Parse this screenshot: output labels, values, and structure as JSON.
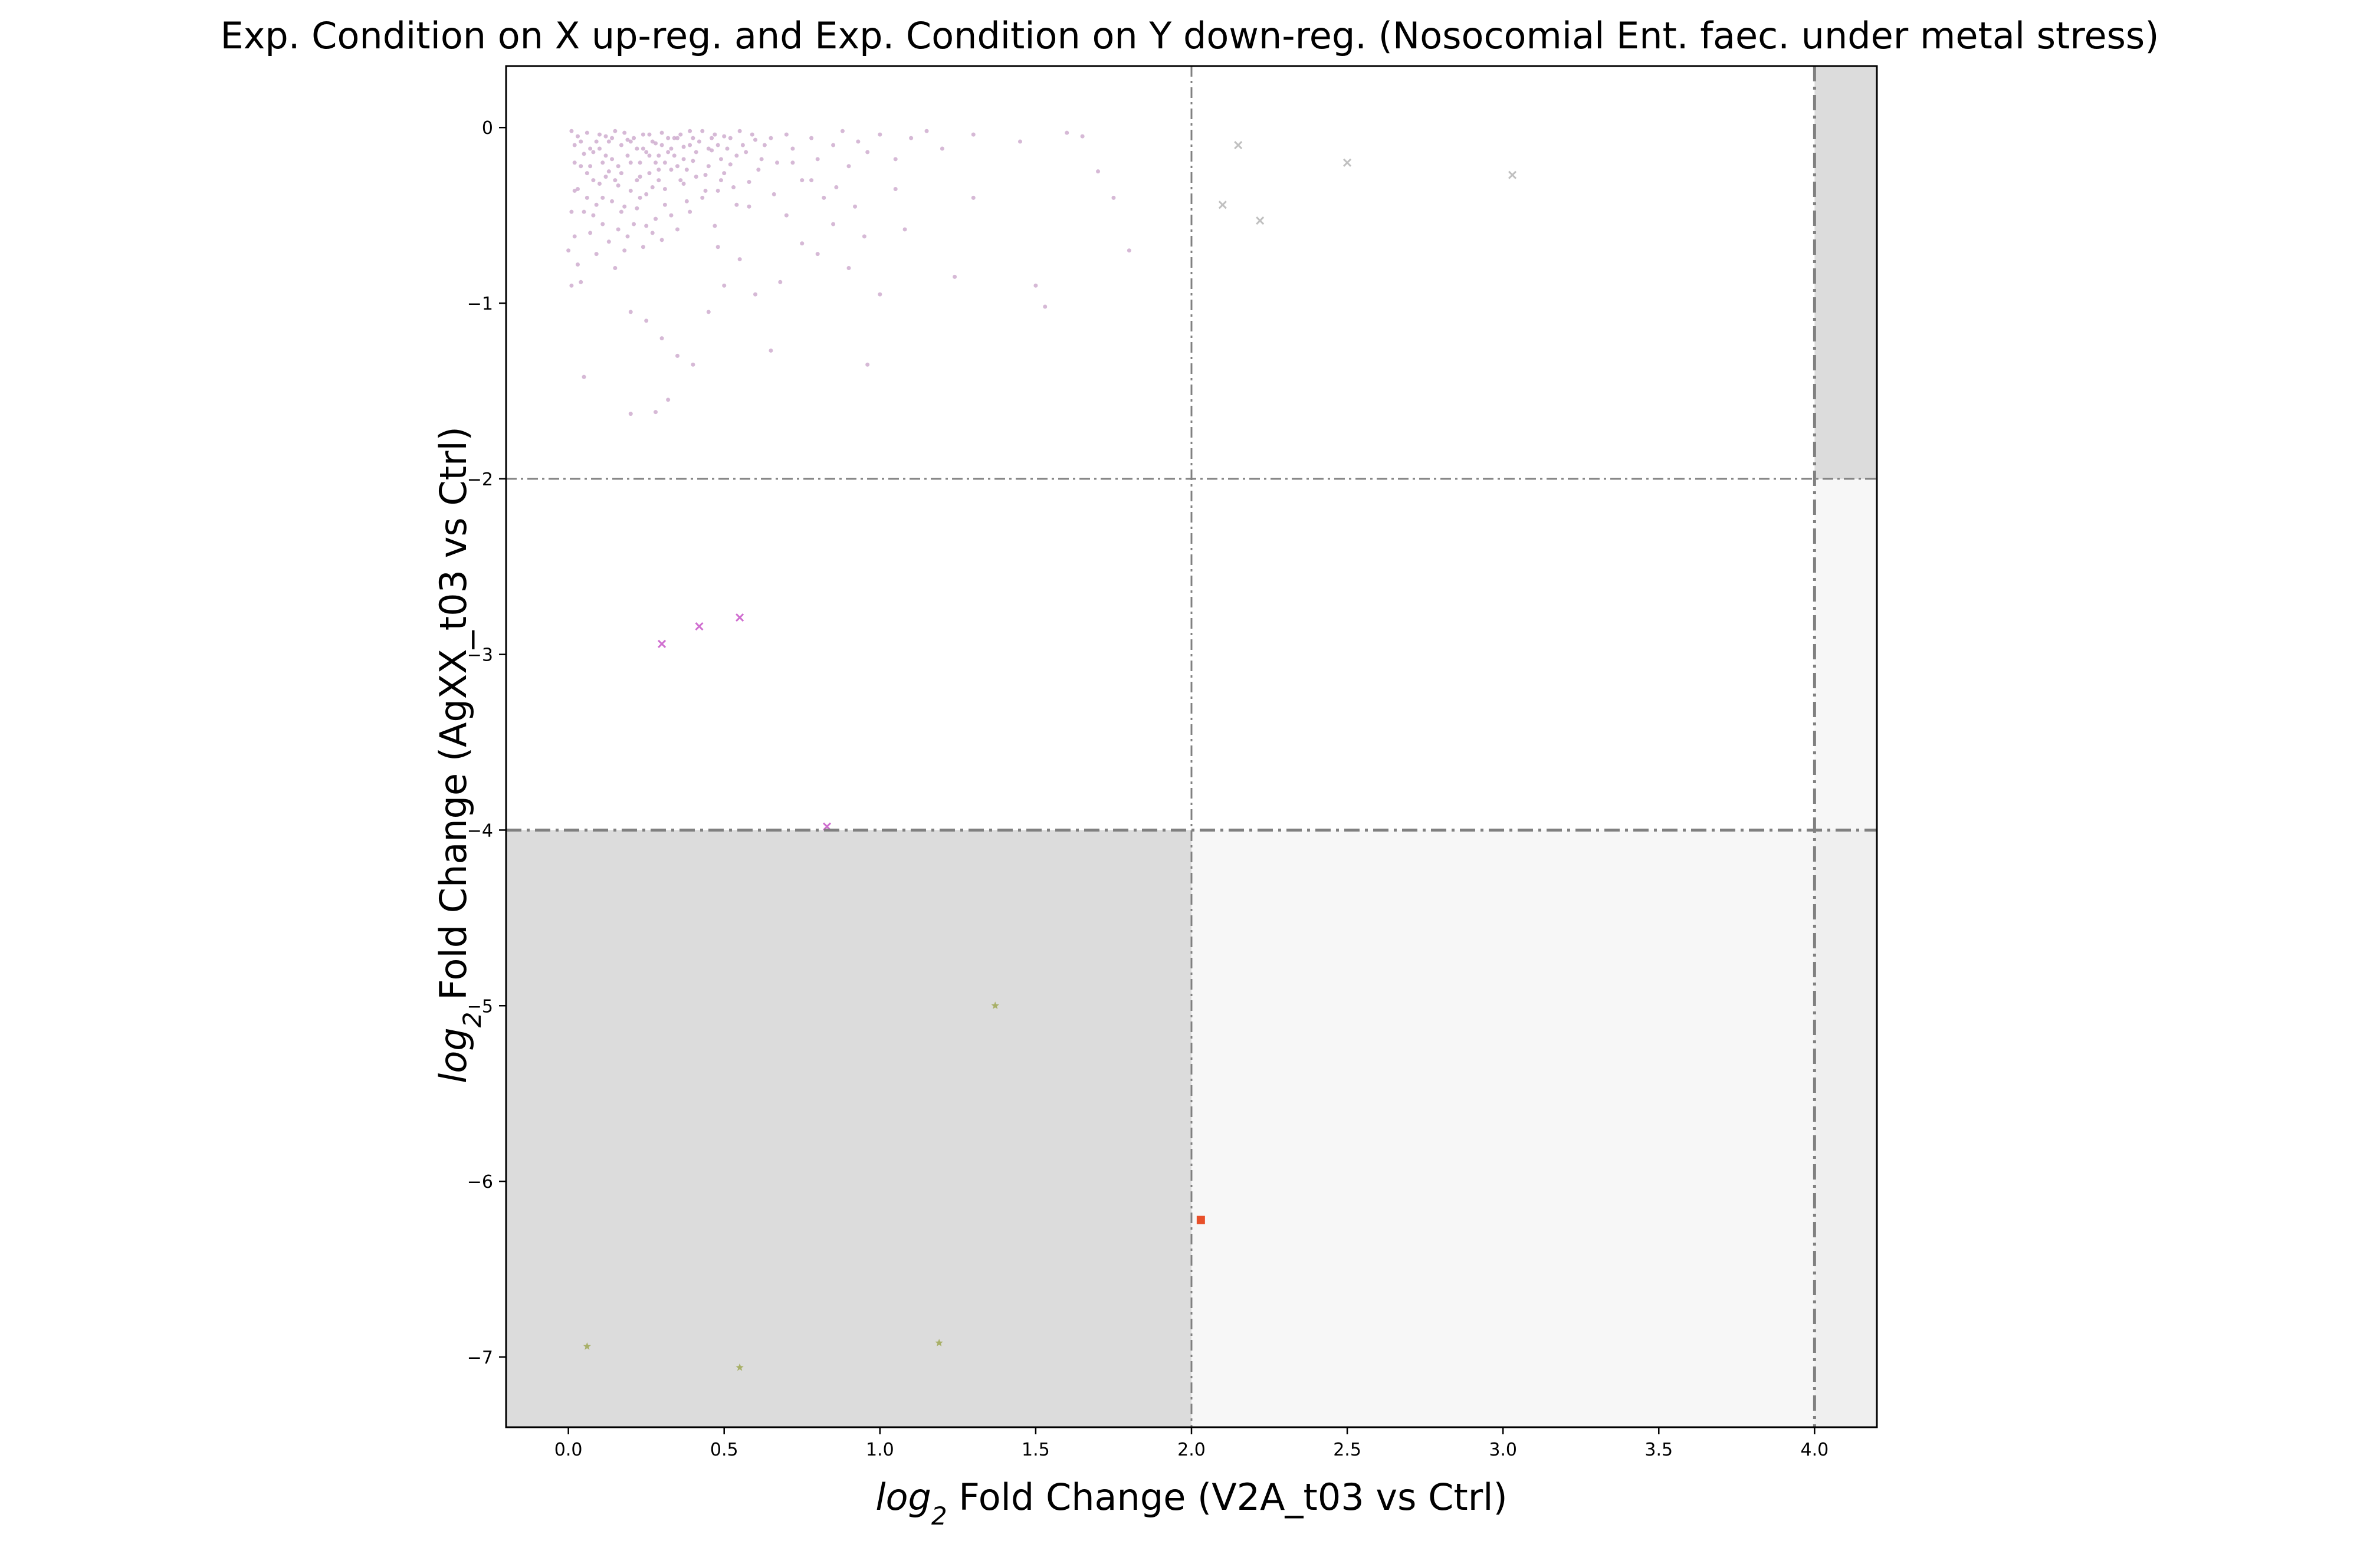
{
  "chart_data": {
    "type": "scatter",
    "title": "Exp. Condition on X up-reg. and Exp. Condition on Y down-reg. (Nosocomial Ent. faec. under metal stress)",
    "xlabel": {
      "prefix": "log",
      "sub": "2",
      "rest": " Fold Change (V2A_t03 vs Ctrl)"
    },
    "ylabel": {
      "prefix": "log",
      "sub": "2",
      "rest": " Fold Change (AgXX_t03 vs Ctrl)"
    },
    "xlim": [
      -0.2,
      4.2
    ],
    "ylim": [
      -7.4,
      0.35
    ],
    "x_ticks": [
      0.0,
      0.5,
      1.0,
      1.5,
      2.0,
      2.5,
      3.0,
      3.5,
      4.0
    ],
    "x_tick_labels": [
      "0.0",
      "0.5",
      "1.0",
      "1.5",
      "2.0",
      "2.5",
      "3.0",
      "3.5",
      "4.0"
    ],
    "y_ticks": [
      0,
      -1,
      -2,
      -3,
      -4,
      -5,
      -6,
      -7
    ],
    "y_tick_labels": [
      "0",
      "−1",
      "−2",
      "−3",
      "−4",
      "−5",
      "−6",
      "−7"
    ],
    "grid": false,
    "legend": "none",
    "regions": [
      {
        "x": [
          -0.2,
          2.0
        ],
        "y": [
          -7.4,
          -4.0
        ],
        "color": "#dcdcdc"
      },
      {
        "x": [
          2.0,
          4.0
        ],
        "y": [
          -7.4,
          -4.0
        ],
        "color": "#f7f7f7"
      },
      {
        "x": [
          4.0,
          4.2
        ],
        "y": [
          -7.4,
          -4.0
        ],
        "color": "#efefef"
      },
      {
        "x": [
          4.0,
          4.2
        ],
        "y": [
          -4.0,
          -2.0
        ],
        "color": "#f7f7f7"
      },
      {
        "x": [
          4.0,
          4.2
        ],
        "y": [
          -2.0,
          0.35
        ],
        "color": "#dcdcdc"
      }
    ],
    "threshold_lines": [
      {
        "orientation": "vertical",
        "value": 2.0,
        "style": "thin"
      },
      {
        "orientation": "vertical",
        "value": 4.0,
        "style": "thick"
      },
      {
        "orientation": "horizontal",
        "value": -2.0,
        "style": "thin"
      },
      {
        "orientation": "horizontal",
        "value": -4.0,
        "style": "thick"
      }
    ],
    "series": [
      {
        "marker": "dot",
        "color": "#c8a2c8",
        "points": [
          [
            0.01,
            -0.02
          ],
          [
            0.02,
            -0.1
          ],
          [
            0.03,
            -0.05
          ],
          [
            0.05,
            -0.15
          ],
          [
            0.06,
            -0.03
          ],
          [
            0.07,
            -0.22
          ],
          [
            0.08,
            -0.3
          ],
          [
            0.09,
            -0.08
          ],
          [
            0.1,
            -0.12
          ],
          [
            0.11,
            -0.4
          ],
          [
            0.12,
            -0.05
          ],
          [
            0.13,
            -0.25
          ],
          [
            0.14,
            -0.18
          ],
          [
            0.15,
            -0.02
          ],
          [
            0.16,
            -0.33
          ],
          [
            0.17,
            -0.1
          ],
          [
            0.18,
            -0.45
          ],
          [
            0.19,
            -0.07
          ],
          [
            0.2,
            -0.2
          ],
          [
            0.21,
            -0.55
          ],
          [
            0.22,
            -0.12
          ],
          [
            0.23,
            -0.28
          ],
          [
            0.24,
            -0.04
          ],
          [
            0.25,
            -0.38
          ],
          [
            0.26,
            -0.16
          ],
          [
            0.27,
            -0.6
          ],
          [
            0.28,
            -0.09
          ],
          [
            0.29,
            -0.24
          ],
          [
            0.3,
            -0.03
          ],
          [
            0.31,
            -0.35
          ],
          [
            0.32,
            -0.14
          ],
          [
            0.33,
            -0.5
          ],
          [
            0.34,
            -0.06
          ],
          [
            0.35,
            -0.22
          ],
          [
            0.36,
            -0.3
          ],
          [
            0.37,
            -0.11
          ],
          [
            0.38,
            -0.42
          ],
          [
            0.39,
            -0.02
          ],
          [
            0.4,
            -0.19
          ],
          [
            0.42,
            -0.08
          ],
          [
            0.44,
            -0.27
          ],
          [
            0.46,
            -0.13
          ],
          [
            0.48,
            -0.36
          ],
          [
            0.5,
            -0.05
          ],
          [
            0.52,
            -0.21
          ],
          [
            0.54,
            -0.44
          ],
          [
            0.56,
            -0.1
          ],
          [
            0.58,
            -0.31
          ],
          [
            0.6,
            -0.07
          ],
          [
            0.62,
            -0.18
          ],
          [
            0.03,
            -0.35
          ],
          [
            0.05,
            -0.48
          ],
          [
            0.07,
            -0.6
          ],
          [
            0.09,
            -0.72
          ],
          [
            0.11,
            -0.55
          ],
          [
            0.13,
            -0.65
          ],
          [
            0.15,
            -0.8
          ],
          [
            0.04,
            -0.88
          ],
          [
            0.02,
            -0.62
          ],
          [
            0.08,
            -0.5
          ],
          [
            0.1,
            -0.32
          ],
          [
            0.14,
            -0.42
          ],
          [
            0.16,
            -0.58
          ],
          [
            0.18,
            -0.7
          ],
          [
            0.2,
            -0.36
          ],
          [
            0.22,
            -0.46
          ],
          [
            0.24,
            -0.68
          ],
          [
            0.26,
            -0.26
          ],
          [
            0.28,
            -0.52
          ],
          [
            0.3,
            -0.64
          ],
          [
            0.06,
            -0.4
          ],
          [
            0.12,
            -0.28
          ],
          [
            0.17,
            -0.48
          ],
          [
            0.19,
            -0.62
          ],
          [
            0.23,
            -0.2
          ],
          [
            0.25,
            -0.56
          ],
          [
            0.27,
            -0.34
          ],
          [
            0.29,
            -0.16
          ],
          [
            0.31,
            -0.44
          ],
          [
            0.33,
            -0.24
          ],
          [
            0.35,
            -0.58
          ],
          [
            0.37,
            -0.32
          ],
          [
            0.39,
            -0.48
          ],
          [
            0.41,
            -0.14
          ],
          [
            0.43,
            -0.4
          ],
          [
            0.45,
            -0.22
          ],
          [
            0.47,
            -0.56
          ],
          [
            0.49,
            -0.3
          ],
          [
            0.51,
            -0.12
          ],
          [
            0.53,
            -0.34
          ],
          [
            0.02,
            -0.2
          ],
          [
            0.04,
            -0.08
          ],
          [
            0.06,
            -0.26
          ],
          [
            0.08,
            -0.14
          ],
          [
            0.1,
            -0.04
          ],
          [
            0.12,
            -0.16
          ],
          [
            0.14,
            -0.06
          ],
          [
            0.16,
            -0.22
          ],
          [
            0.18,
            -0.03
          ],
          [
            0.2,
            -0.08
          ],
          [
            0.22,
            -0.3
          ],
          [
            0.24,
            -0.12
          ],
          [
            0.26,
            -0.04
          ],
          [
            0.28,
            -0.2
          ],
          [
            0.3,
            -0.1
          ],
          [
            0.32,
            -0.06
          ],
          [
            0.34,
            -0.16
          ],
          [
            0.36,
            -0.04
          ],
          [
            0.38,
            -0.24
          ],
          [
            0.4,
            -0.06
          ],
          [
            0.43,
            -0.02
          ],
          [
            0.45,
            -0.12
          ],
          [
            0.47,
            -0.04
          ],
          [
            0.49,
            -0.18
          ],
          [
            0.55,
            -0.02
          ],
          [
            0.57,
            -0.14
          ],
          [
            0.59,
            -0.04
          ],
          [
            0.61,
            -0.24
          ],
          [
            0.63,
            -0.1
          ],
          [
            0.65,
            -0.06
          ],
          [
            0.67,
            -0.2
          ],
          [
            0.7,
            -0.04
          ],
          [
            0.72,
            -0.12
          ],
          [
            0.75,
            -0.3
          ],
          [
            0.78,
            -0.06
          ],
          [
            0.8,
            -0.18
          ],
          [
            0.82,
            -0.4
          ],
          [
            0.85,
            -0.1
          ],
          [
            0.88,
            -0.02
          ],
          [
            0.9,
            -0.22
          ],
          [
            0.93,
            -0.08
          ],
          [
            0.96,
            -0.14
          ],
          [
            1.0,
            -0.04
          ],
          [
            1.05,
            -0.18
          ],
          [
            1.1,
            -0.06
          ],
          [
            1.15,
            -0.02
          ],
          [
            1.2,
            -0.12
          ],
          [
            1.3,
            -0.04
          ],
          [
            1.45,
            -0.08
          ],
          [
            1.6,
            -0.03
          ],
          [
            1.65,
            -0.05
          ],
          [
            1.7,
            -0.25
          ],
          [
            1.75,
            -0.4
          ],
          [
            1.8,
            -0.7
          ],
          [
            0.7,
            -0.5
          ],
          [
            0.75,
            -0.66
          ],
          [
            0.8,
            -0.72
          ],
          [
            0.85,
            -0.55
          ],
          [
            0.9,
            -0.8
          ],
          [
            0.95,
            -0.62
          ],
          [
            1.0,
            -0.95
          ],
          [
            1.05,
            -0.35
          ],
          [
            1.24,
            -0.85
          ],
          [
            1.3,
            -0.4
          ],
          [
            1.5,
            -0.9
          ],
          [
            1.53,
            -1.02
          ],
          [
            0.65,
            -1.27
          ],
          [
            0.45,
            -1.05
          ],
          [
            0.2,
            -1.05
          ],
          [
            0.25,
            -1.1
          ],
          [
            0.3,
            -1.2
          ],
          [
            0.35,
            -1.3
          ],
          [
            0.4,
            -1.35
          ],
          [
            0.2,
            -1.63
          ],
          [
            0.28,
            -1.62
          ],
          [
            0.32,
            -1.55
          ],
          [
            0.05,
            -1.42
          ],
          [
            0.96,
            -1.35
          ],
          [
            0.6,
            -0.95
          ],
          [
            0.55,
            -0.75
          ],
          [
            0.5,
            -0.9
          ],
          [
            0.48,
            -0.68
          ],
          [
            0.58,
            -0.45
          ],
          [
            0.66,
            -0.38
          ],
          [
            0.68,
            -0.88
          ],
          [
            0.72,
            -0.2
          ],
          [
            0.78,
            -0.3
          ],
          [
            0.86,
            -0.34
          ],
          [
            0.92,
            -0.45
          ],
          [
            1.08,
            -0.58
          ],
          [
            0.01,
            -0.48
          ],
          [
            0.02,
            -0.36
          ],
          [
            0.03,
            -0.78
          ],
          [
            0.0,
            -0.7
          ],
          [
            0.01,
            -0.9
          ],
          [
            0.04,
            -0.22
          ],
          [
            0.07,
            -0.12
          ],
          [
            0.09,
            -0.44
          ],
          [
            0.11,
            -0.2
          ],
          [
            0.13,
            -0.08
          ],
          [
            0.15,
            -0.3
          ],
          [
            0.17,
            -0.26
          ],
          [
            0.19,
            -0.16
          ],
          [
            0.21,
            -0.06
          ],
          [
            0.23,
            -0.4
          ],
          [
            0.25,
            -0.14
          ],
          [
            0.27,
            -0.08
          ],
          [
            0.29,
            -0.3
          ],
          [
            0.31,
            -0.2
          ],
          [
            0.33,
            -0.12
          ],
          [
            0.35,
            -0.06
          ],
          [
            0.37,
            -0.18
          ],
          [
            0.39,
            -0.1
          ],
          [
            0.41,
            -0.28
          ],
          [
            0.44,
            -0.36
          ],
          [
            0.46,
            -0.06
          ],
          [
            0.48,
            -0.1
          ],
          [
            0.5,
            -0.26
          ],
          [
            0.52,
            -0.06
          ],
          [
            0.54,
            -0.16
          ]
        ]
      },
      {
        "marker": "x",
        "color": "#c0c0c0",
        "points": [
          [
            2.15,
            -0.1
          ],
          [
            2.5,
            -0.2
          ],
          [
            3.03,
            -0.27
          ],
          [
            2.1,
            -0.44
          ],
          [
            2.22,
            -0.53
          ]
        ]
      },
      {
        "marker": "x",
        "color": "#d06fd0",
        "points": [
          [
            0.3,
            -2.94
          ],
          [
            0.42,
            -2.84
          ],
          [
            0.55,
            -2.79
          ],
          [
            0.83,
            -3.98
          ]
        ]
      },
      {
        "marker": "star",
        "color": "#a8b068",
        "points": [
          [
            1.37,
            -5.0
          ],
          [
            0.06,
            -6.94
          ],
          [
            0.55,
            -7.06
          ],
          [
            1.19,
            -6.92
          ]
        ]
      },
      {
        "marker": "square",
        "color": "#e8502a",
        "points": [
          [
            2.03,
            -6.22
          ]
        ]
      }
    ]
  }
}
